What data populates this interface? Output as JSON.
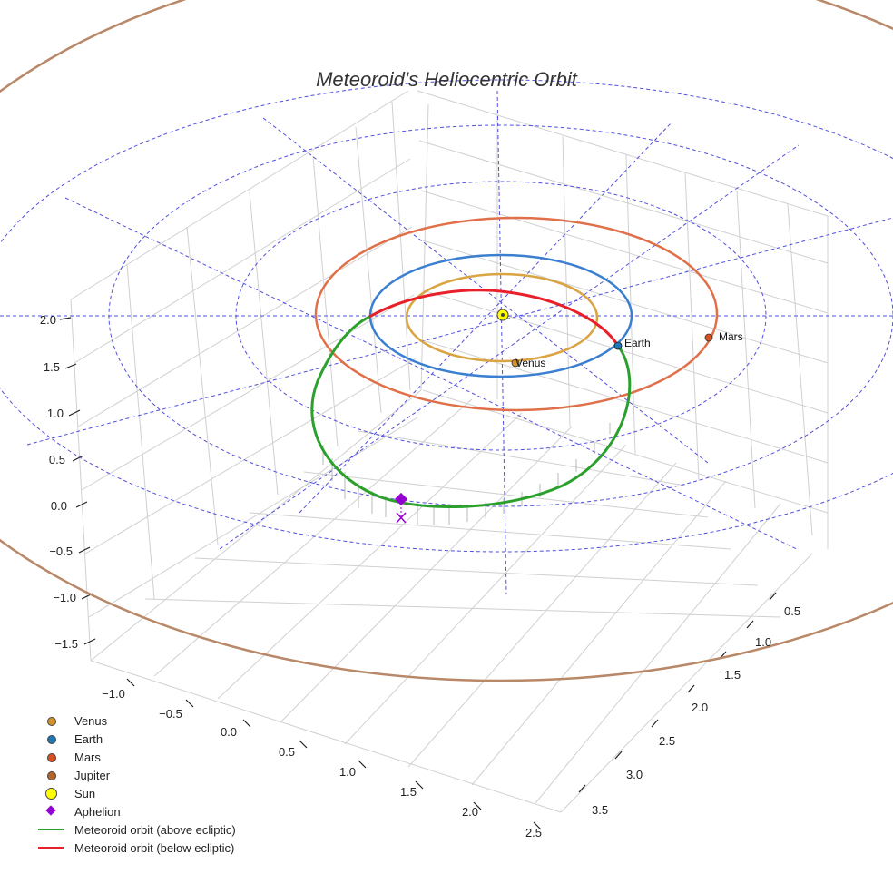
{
  "chart_data": {
    "type": "scatter3d",
    "title": "Meteoroid's Heliocentric Orbit",
    "axes": {
      "x_ticks": [
        "−1.0",
        "−0.5",
        "0.0",
        "0.5",
        "1.0",
        "1.5",
        "2.0",
        "2.5"
      ],
      "y_ticks": [
        "0.5",
        "1.0",
        "1.5",
        "2.0",
        "2.5",
        "3.0",
        "3.5"
      ],
      "z_ticks": [
        "2.0",
        "1.5",
        "1.0",
        "0.5",
        "0.0",
        "−0.5",
        "−1.0",
        "−1.5"
      ],
      "grid": true
    },
    "planets": [
      {
        "name": "Venus",
        "color": "#d4932a",
        "orbit_color": "#d9a441"
      },
      {
        "name": "Earth",
        "color": "#1f77b4",
        "orbit_color": "#3a7fd0"
      },
      {
        "name": "Mars",
        "color": "#d8501e",
        "orbit_color": "#e07049"
      },
      {
        "name": "Jupiter",
        "color": "#b5652a",
        "orbit_color": "#b88868"
      }
    ],
    "meteoroid": {
      "above_color": "#2ca02c",
      "below_color": "#e8202a",
      "aphelion_color": "#9400d3"
    },
    "legend": [
      {
        "label": "Venus",
        "marker": "dot",
        "color": "#d4932a"
      },
      {
        "label": "Earth",
        "marker": "dot",
        "color": "#1f77b4"
      },
      {
        "label": "Mars",
        "marker": "dot",
        "color": "#d8501e"
      },
      {
        "label": "Jupiter",
        "marker": "dot",
        "color": "#b5652a"
      },
      {
        "label": "Sun",
        "marker": "sun",
        "color": "#ffff00"
      },
      {
        "label": "Aphelion",
        "marker": "diamond",
        "color": "#9400d3"
      },
      {
        "label": "Meteoroid orbit (above ecliptic)",
        "marker": "line",
        "color": "#2ca02c"
      },
      {
        "label": "Meteoroid orbit (below ecliptic)",
        "marker": "line",
        "color": "#e8202a"
      }
    ]
  }
}
